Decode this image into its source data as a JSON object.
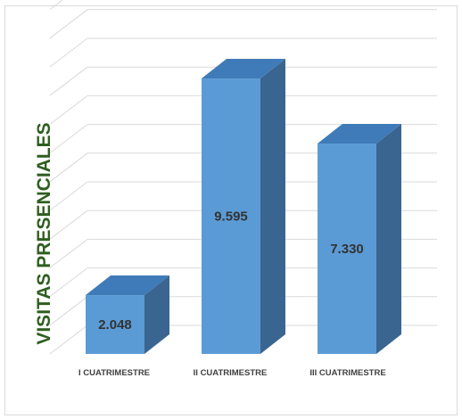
{
  "chart_data": {
    "type": "bar",
    "style": "3d-column",
    "categories": [
      "I CUATRIMESTRE",
      "II CUATRIMESTRE",
      "III CUATRIMESTRE"
    ],
    "values": [
      2048,
      9595,
      7330
    ],
    "value_labels": [
      "2.048",
      "9.595",
      "7.330"
    ],
    "ylabel": "VISITAS PRESENCIALES",
    "ylim": [
      0,
      12000
    ],
    "grid": true,
    "legend": "none",
    "colors": {
      "bar_front": "#5b9bd5",
      "bar_top": "#3f7bb8",
      "bar_side": "#3a6591",
      "gridline": "#d9d9d9",
      "ylabel": "#2e5e1f",
      "labels": "#404040"
    }
  }
}
